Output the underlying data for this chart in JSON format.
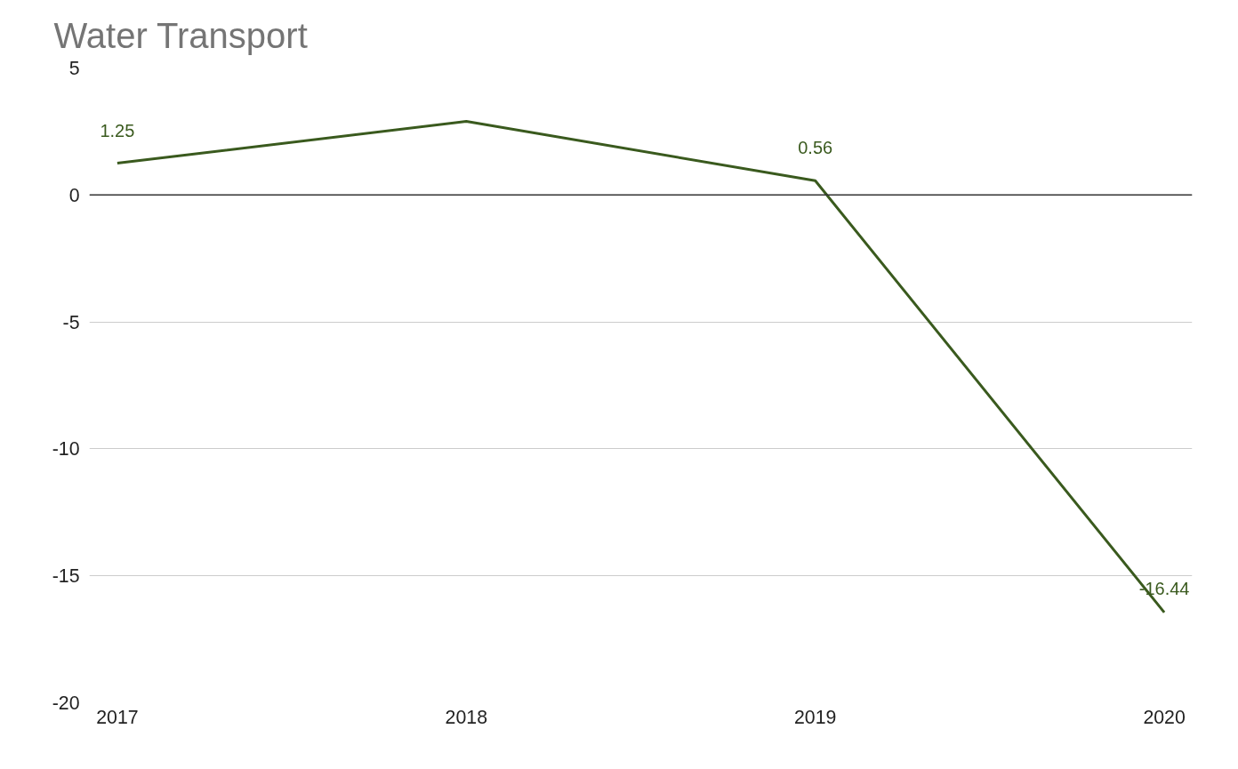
{
  "chart_data": {
    "type": "line",
    "title": "Water Transport",
    "categories": [
      "2017",
      "2018",
      "2019",
      "2020"
    ],
    "series": [
      {
        "color": "#3a5a1e",
        "values": [
          1.25,
          2.9,
          0.56,
          -16.44
        ]
      }
    ],
    "value_labels": [
      "1.25",
      null,
      "0.56",
      "-16.44"
    ],
    "ylim": [
      -20,
      5
    ],
    "yticks": [
      5,
      0,
      -5,
      -10,
      -15,
      -20
    ],
    "ref_lines": [
      {
        "axis": "y",
        "value": 0,
        "color": "#333333"
      }
    ],
    "grid": "y",
    "marker": "none",
    "line_style": "solid"
  }
}
